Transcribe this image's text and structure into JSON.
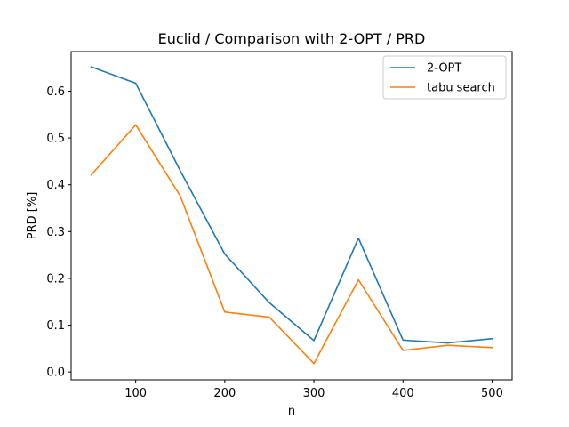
{
  "chart_data": {
    "type": "line",
    "title": "Euclid / Comparison with 2-OPT / PRD",
    "xlabel": "n",
    "ylabel": "PRD [%]",
    "xlim": [
      27.5,
      522.5
    ],
    "ylim": [
      -0.0168,
      0.6845
    ],
    "xticks": [
      100,
      200,
      300,
      400,
      500
    ],
    "yticks": [
      0.0,
      0.1,
      0.2,
      0.3,
      0.4,
      0.5,
      0.6
    ],
    "ytick_labels": [
      "0.0",
      "0.1",
      "0.2",
      "0.3",
      "0.4",
      "0.5",
      "0.6"
    ],
    "grid": false,
    "legend_position": "top-right",
    "x": [
      50,
      100,
      150,
      200,
      250,
      300,
      350,
      400,
      450,
      500
    ],
    "series": [
      {
        "name": "2-OPT",
        "color": "#1f77b4",
        "values": [
          0.652,
          0.617,
          0.43,
          0.252,
          0.148,
          0.067,
          0.286,
          0.068,
          0.062,
          0.071
        ]
      },
      {
        "name": "tabu search",
        "color": "#ff7f0e",
        "values": [
          0.421,
          0.528,
          0.376,
          0.128,
          0.117,
          0.018,
          0.197,
          0.046,
          0.057,
          0.052
        ]
      }
    ]
  }
}
